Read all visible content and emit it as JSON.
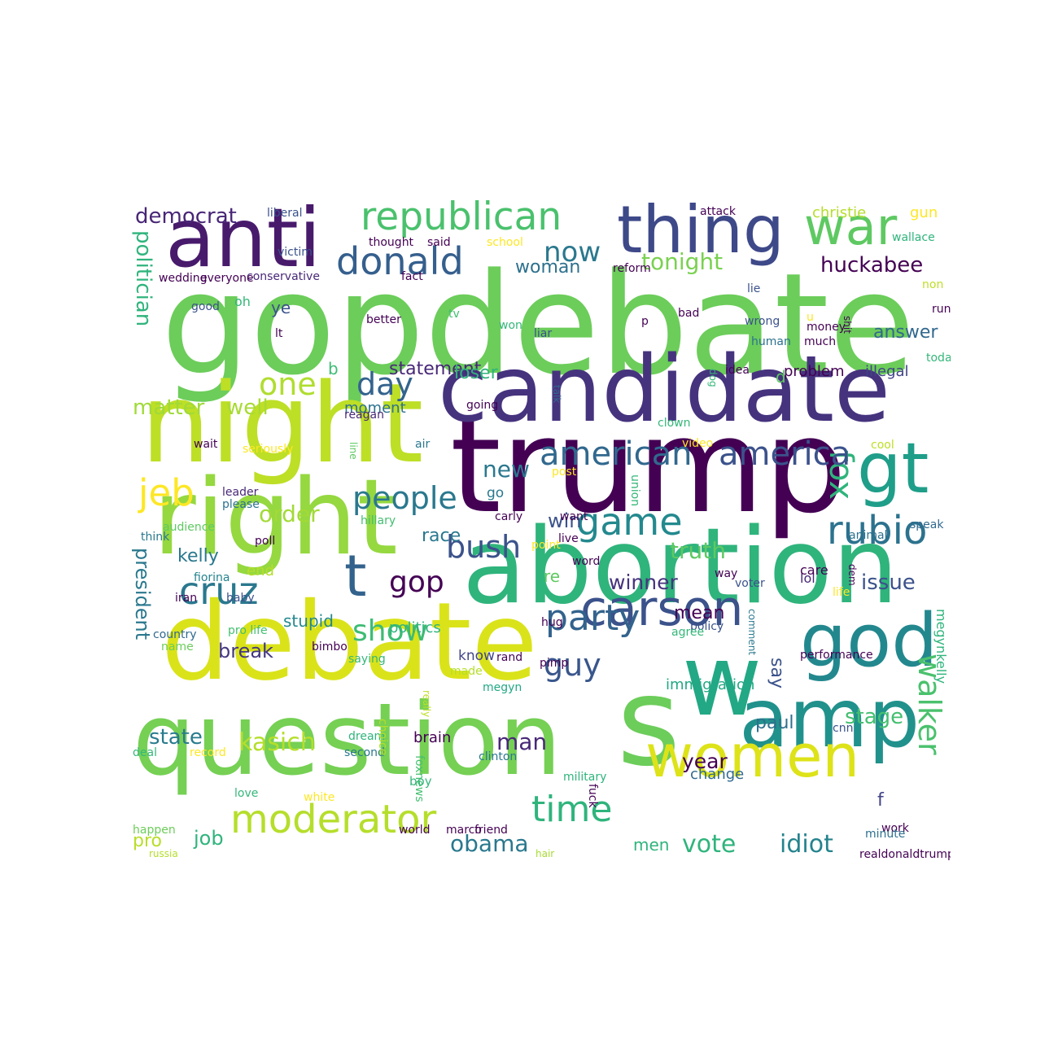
{
  "words": [
    {
      "text": "gopdebate",
      "color": "#6ccd5a"
    },
    {
      "text": "trump",
      "color": "#440154"
    },
    {
      "text": "candidate",
      "color": "#46337e"
    },
    {
      "text": "question",
      "color": "#75d054"
    },
    {
      "text": "debate",
      "color": "#dae319"
    },
    {
      "text": "abortion",
      "color": "#2fb47c"
    },
    {
      "text": "night",
      "color": "#bddf26"
    },
    {
      "text": "right",
      "color": "#95d840"
    },
    {
      "text": "s",
      "color": "#6ccd5a"
    },
    {
      "text": "w",
      "color": "#22a884"
    },
    {
      "text": "amp",
      "color": "#21918c"
    },
    {
      "text": "anti",
      "color": "#481a6c"
    },
    {
      "text": "thing",
      "color": "#3e4989"
    },
    {
      "text": "god",
      "color": "#23888e"
    },
    {
      "text": "women",
      "color": "#dde318"
    },
    {
      "text": "gt",
      "color": "#1f9e89"
    },
    {
      "text": "carson",
      "color": "#3b528b"
    },
    {
      "text": "war",
      "color": "#5ec962"
    },
    {
      "text": "republican",
      "color": "#4ac16d"
    },
    {
      "text": "moderator",
      "color": "#b5de2b"
    },
    {
      "text": "donald",
      "color": "#355f8d"
    },
    {
      "text": "game",
      "color": "#23898e"
    },
    {
      "text": "rubio",
      "color": "#2c728e"
    },
    {
      "text": "cruz",
      "color": "#2a788e"
    },
    {
      "text": "party",
      "color": "#33638d"
    },
    {
      "text": "time",
      "color": "#2fb47c"
    },
    {
      "text": "bush",
      "color": "#3b528b"
    },
    {
      "text": "jeb",
      "color": "#fde725"
    },
    {
      "text": "walker",
      "color": "#4ac16d"
    },
    {
      "text": "t",
      "color": "#33638d"
    },
    {
      "text": "fox",
      "color": "#2fb47c"
    },
    {
      "text": "american",
      "color": "#31688e"
    },
    {
      "text": "america",
      "color": "#3b528b"
    },
    {
      "text": "people",
      "color": "#2a788e"
    },
    {
      "text": "guy",
      "color": "#39568c"
    },
    {
      "text": "gop",
      "color": "#440154"
    },
    {
      "text": "show",
      "color": "#3dbc74"
    },
    {
      "text": "day",
      "color": "#33638d"
    },
    {
      "text": "one",
      "color": "#b0dd2f"
    },
    {
      "text": "now",
      "color": "#2a788e"
    },
    {
      "text": "tonight",
      "color": "#7ad151"
    },
    {
      "text": "huckabee",
      "color": "#440154"
    },
    {
      "text": "democrat",
      "color": "#482576"
    },
    {
      "text": "politician",
      "color": "#2fb47c"
    },
    {
      "text": "president",
      "color": "#2a788e"
    },
    {
      "text": "kasich",
      "color": "#b5de2b"
    },
    {
      "text": "new",
      "color": "#2a788e"
    },
    {
      "text": "order",
      "color": "#a2da37"
    },
    {
      "text": "matter",
      "color": "#a0da39"
    },
    {
      "text": "well",
      "color": "#a8db34"
    },
    {
      "text": "stage",
      "color": "#44bf70"
    },
    {
      "text": "truth",
      "color": "#5ec962"
    },
    {
      "text": "winner",
      "color": "#46337e"
    },
    {
      "text": "issue",
      "color": "#3b528b"
    },
    {
      "text": "idiot",
      "color": "#25838e"
    },
    {
      "text": "vote",
      "color": "#2fb47c"
    },
    {
      "text": "obama",
      "color": "#2a788e"
    },
    {
      "text": "job",
      "color": "#2fb47c"
    },
    {
      "text": "state",
      "color": "#297b8e"
    },
    {
      "text": "man",
      "color": "#482878"
    },
    {
      "text": "year",
      "color": "#440154"
    },
    {
      "text": "break",
      "color": "#453781"
    },
    {
      "text": "win",
      "color": "#3b528b"
    },
    {
      "text": "kelly",
      "color": "#2a788e"
    },
    {
      "text": "answer",
      "color": "#31688e"
    },
    {
      "text": "statement",
      "color": "#482878"
    },
    {
      "text": "mean",
      "color": "#440154"
    },
    {
      "text": "paul",
      "color": "#2d708e"
    },
    {
      "text": "say",
      "color": "#3b528b"
    },
    {
      "text": "stupid",
      "color": "#23888e"
    },
    {
      "text": "race",
      "color": "#2a788e"
    },
    {
      "text": "woman",
      "color": "#2d708e"
    },
    {
      "text": "loser",
      "color": "#2fb47c"
    },
    {
      "text": "megynkelly",
      "color": "#2fb47c"
    },
    {
      "text": "immigration",
      "color": "#22a884"
    },
    {
      "text": "pro",
      "color": "#b8de29"
    },
    {
      "text": "men",
      "color": "#2fb47c"
    },
    {
      "text": "christie",
      "color": "#b5de2b"
    },
    {
      "text": "gun",
      "color": "#fde725"
    },
    {
      "text": "ye",
      "color": "#3b528b"
    },
    {
      "text": "b",
      "color": "#3dbc74"
    },
    {
      "text": "re",
      "color": "#5ec962"
    },
    {
      "text": "f",
      "color": "#414487"
    },
    {
      "text": "illegal",
      "color": "#414487"
    },
    {
      "text": "problem",
      "color": "#440154"
    },
    {
      "text": "politics",
      "color": "#2fb47c"
    },
    {
      "text": "end",
      "color": "#b5de2b"
    },
    {
      "text": "moment",
      "color": "#2c728e"
    },
    {
      "text": "change",
      "color": "#31688e"
    },
    {
      "text": "brain",
      "color": "#440154"
    },
    {
      "text": "lol",
      "color": "#482878"
    },
    {
      "text": "care",
      "color": "#440154"
    },
    {
      "text": "know",
      "color": "#414487"
    },
    {
      "text": "go",
      "color": "#2a788e"
    },
    {
      "text": "oh",
      "color": "#35b779"
    },
    {
      "text": "d",
      "color": "#5ec962"
    },
    {
      "text": "foxnews",
      "color": "#44bf70"
    },
    {
      "text": "work",
      "color": "#440154"
    },
    {
      "text": "minute",
      "color": "#2d708e"
    },
    {
      "text": "fiorina",
      "color": "#25838e"
    },
    {
      "text": "union",
      "color": "#35b779"
    },
    {
      "text": "point",
      "color": "#fde725"
    },
    {
      "text": "boy",
      "color": "#35b779"
    },
    {
      "text": "reagan",
      "color": "#482878"
    },
    {
      "text": "conservative",
      "color": "#482878"
    },
    {
      "text": "hillary",
      "color": "#44bf70"
    },
    {
      "text": "leader",
      "color": "#482878"
    },
    {
      "text": "please",
      "color": "#2c728e"
    },
    {
      "text": "audience",
      "color": "#5ec962"
    },
    {
      "text": "poll",
      "color": "#440154"
    },
    {
      "text": "iran",
      "color": "#440154"
    },
    {
      "text": "baby",
      "color": "#3b528b"
    },
    {
      "text": "country",
      "color": "#31688e"
    },
    {
      "text": "pro life",
      "color": "#44bf70"
    },
    {
      "text": "name",
      "color": "#6ccd5a"
    },
    {
      "text": "bimbo",
      "color": "#440154"
    },
    {
      "text": "saying",
      "color": "#35b779"
    },
    {
      "text": "made",
      "color": "#b5de2b"
    },
    {
      "text": "really",
      "color": "#bddf26"
    },
    {
      "text": "megyn",
      "color": "#22a884"
    },
    {
      "text": "deal",
      "color": "#35b779"
    },
    {
      "text": "record",
      "color": "#fde725"
    },
    {
      "text": "dream",
      "color": "#2fb47c"
    },
    {
      "text": "second",
      "color": "#2a788e"
    },
    {
      "text": "choice",
      "color": "#b5de2b"
    },
    {
      "text": "white",
      "color": "#fde725"
    },
    {
      "text": "love",
      "color": "#35b779"
    },
    {
      "text": "happen",
      "color": "#6ccd5a"
    },
    {
      "text": "russia",
      "color": "#b5de2b"
    },
    {
      "text": "world",
      "color": "#440154"
    },
    {
      "text": "marco",
      "color": "#440154"
    },
    {
      "text": "friend",
      "color": "#440154"
    },
    {
      "text": "hair",
      "color": "#a8db34"
    },
    {
      "text": "clinton",
      "color": "#2a788e"
    },
    {
      "text": "military",
      "color": "#2fb47c"
    },
    {
      "text": "fuck",
      "color": "#440154"
    },
    {
      "text": "rand",
      "color": "#440154"
    },
    {
      "text": "pimp",
      "color": "#440154"
    },
    {
      "text": "performance",
      "color": "#440154"
    },
    {
      "text": "cnn",
      "color": "#3b528b"
    },
    {
      "text": "realdonaldtrump",
      "color": "#440154"
    },
    {
      "text": "liberal",
      "color": "#3b528b"
    },
    {
      "text": "attack",
      "color": "#440154"
    },
    {
      "text": "victim",
      "color": "#3b528b"
    },
    {
      "text": "thought",
      "color": "#440154"
    },
    {
      "text": "said",
      "color": "#440154"
    },
    {
      "text": "school",
      "color": "#fde725"
    },
    {
      "text": "wallace",
      "color": "#2fb47c"
    },
    {
      "text": "wedding",
      "color": "#440154"
    },
    {
      "text": "everyone",
      "color": "#440154"
    },
    {
      "text": "fact",
      "color": "#440154"
    },
    {
      "text": "reform",
      "color": "#440154"
    },
    {
      "text": "non",
      "color": "#bddf26"
    },
    {
      "text": "lie",
      "color": "#3b528b"
    },
    {
      "text": "good",
      "color": "#3b528b"
    },
    {
      "text": "tv",
      "color": "#44bf70"
    },
    {
      "text": "bad",
      "color": "#440154"
    },
    {
      "text": "run",
      "color": "#440154"
    },
    {
      "text": "better",
      "color": "#440154"
    },
    {
      "text": "lt",
      "color": "#440154"
    },
    {
      "text": "won",
      "color": "#35b779"
    },
    {
      "text": "liar",
      "color": "#3b528b"
    },
    {
      "text": "p",
      "color": "#440154"
    },
    {
      "text": "wrong",
      "color": "#3b528b"
    },
    {
      "text": "u",
      "color": "#fde725"
    },
    {
      "text": "money",
      "color": "#440154"
    },
    {
      "text": "much",
      "color": "#440154"
    },
    {
      "text": "shit",
      "color": "#440154"
    },
    {
      "text": "human",
      "color": "#2c728e"
    },
    {
      "text": "today",
      "color": "#35b779"
    },
    {
      "text": "idea",
      "color": "#440154"
    },
    {
      "text": "dog",
      "color": "#35b779"
    },
    {
      "text": "going",
      "color": "#440154"
    },
    {
      "text": "talk",
      "color": "#31688e"
    },
    {
      "text": "clown",
      "color": "#35b779"
    },
    {
      "text": "video",
      "color": "#fde725"
    },
    {
      "text": "cool",
      "color": "#bddf26"
    },
    {
      "text": "wait",
      "color": "#440154"
    },
    {
      "text": "seriously",
      "color": "#fde725"
    },
    {
      "text": "line",
      "color": "#5ec962"
    },
    {
      "text": "air",
      "color": "#2a788e"
    },
    {
      "text": "post",
      "color": "#fde725"
    },
    {
      "text": "carly",
      "color": "#440154"
    },
    {
      "text": "want",
      "color": "#440154"
    },
    {
      "text": "speak",
      "color": "#31688e"
    },
    {
      "text": "animal",
      "color": "#2c728e"
    },
    {
      "text": "think",
      "color": "#2a788e"
    },
    {
      "text": "live",
      "color": "#440154"
    },
    {
      "text": "word",
      "color": "#440154"
    },
    {
      "text": "way",
      "color": "#440154"
    },
    {
      "text": "dem",
      "color": "#440154"
    },
    {
      "text": "voter",
      "color": "#3b528b"
    },
    {
      "text": "life",
      "color": "#fde725"
    },
    {
      "text": "policy",
      "color": "#3b528b"
    },
    {
      "text": "comment",
      "color": "#2a788e"
    },
    {
      "text": "hug",
      "color": "#440154"
    },
    {
      "text": "agree",
      "color": "#35b779"
    },
    {
      "text": "rt",
      "color": "#2c728e"
    },
    {
      "text": "person",
      "color": "#fde725"
    }
  ]
}
